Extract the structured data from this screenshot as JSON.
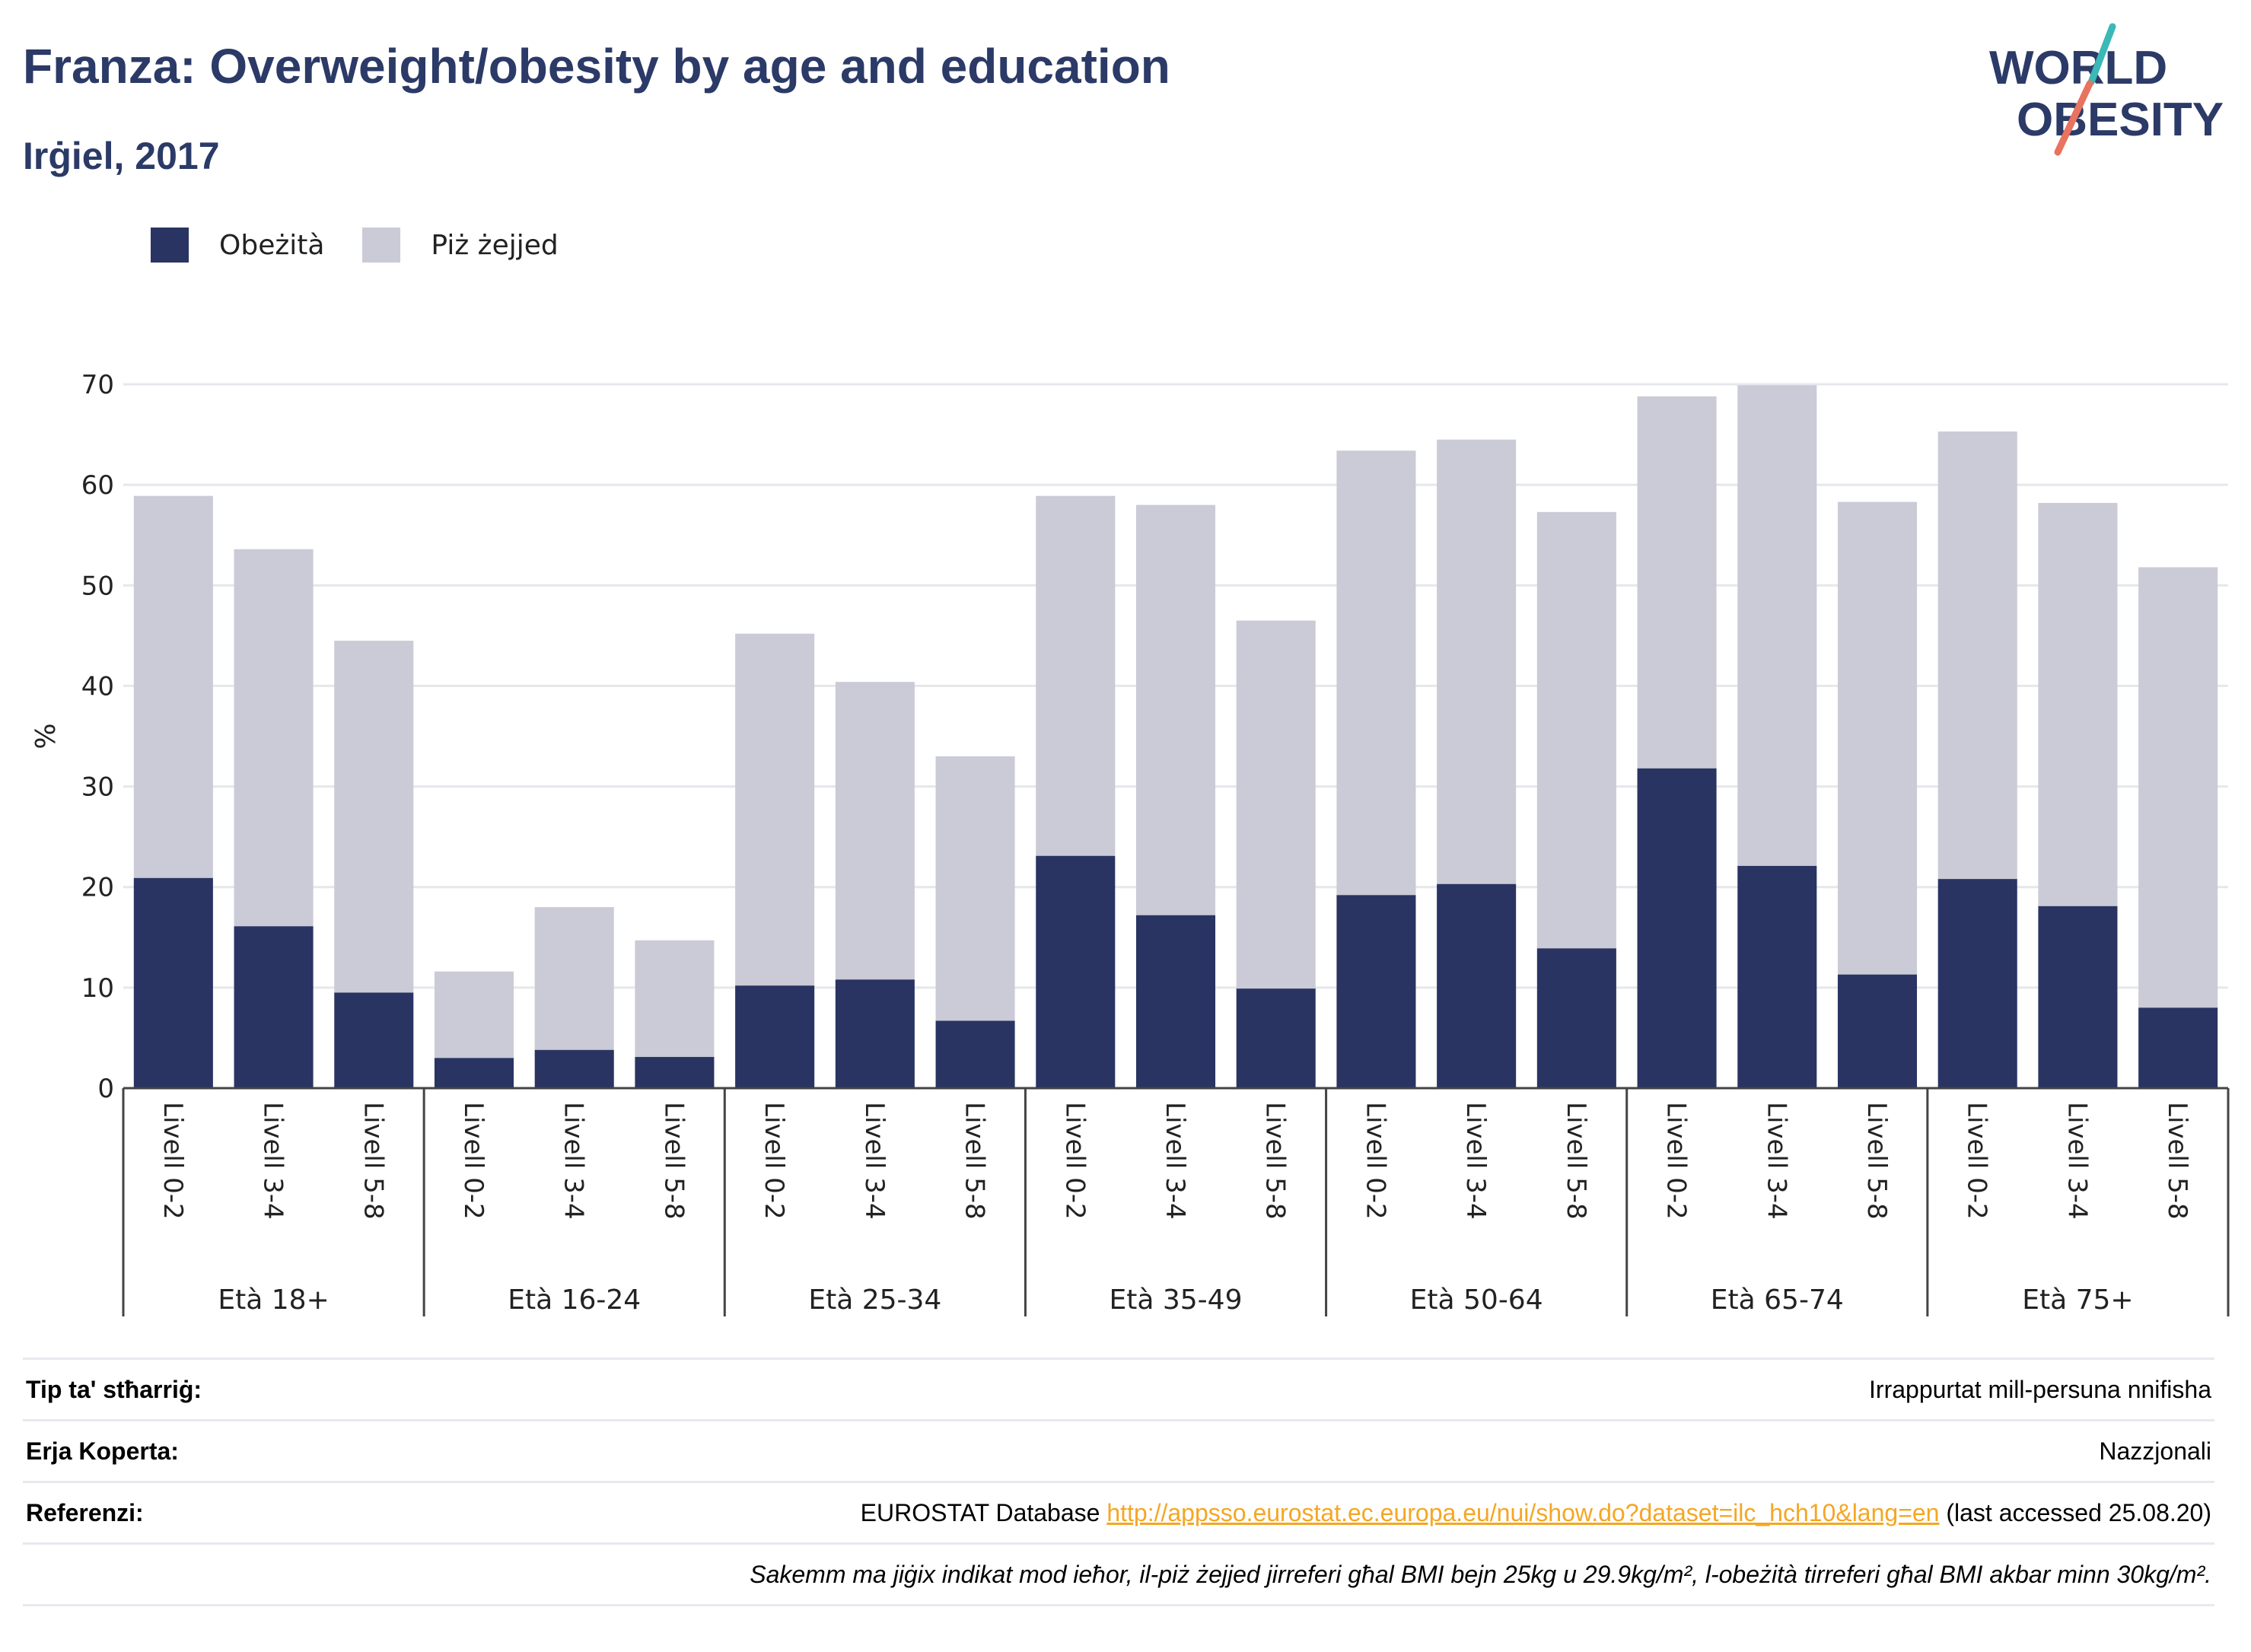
{
  "header": {
    "title": "Franza: Overweight/obesity by age and education",
    "subtitle": "Irġiel, 2017"
  },
  "logo": {
    "line1": "WORLD",
    "line2": "OBESITY"
  },
  "colors": {
    "obesity": "#293462",
    "overweight": "#cacbd6",
    "title": "#2b3a67",
    "link": "#f5a623"
  },
  "chart_data": {
    "type": "bar",
    "stacked": true,
    "ylabel": "%",
    "ylim": [
      0,
      70
    ],
    "yticks": [
      0,
      10,
      20,
      30,
      40,
      50,
      60,
      70
    ],
    "grid": true,
    "legend_position": "top-left",
    "groups": [
      "Età 18+",
      "Età 16-24",
      "Età 25-34",
      "Età 35-49",
      "Età 50-64",
      "Età 65-74",
      "Età 75+"
    ],
    "subcategories": [
      "Livell 0-2",
      "Livell 3-4",
      "Livell 5-8"
    ],
    "series": [
      {
        "name": "Obeżità",
        "color": "#293462",
        "values": [
          20.9,
          16.1,
          9.5,
          3.0,
          3.8,
          3.1,
          10.2,
          10.8,
          6.7,
          23.1,
          17.2,
          9.9,
          19.2,
          20.3,
          13.9,
          31.8,
          22.1,
          11.3,
          20.8,
          18.1,
          8.0
        ]
      },
      {
        "name": "Piż żejjed",
        "color": "#cacbd6",
        "values": [
          38.0,
          37.5,
          35.0,
          8.6,
          14.2,
          11.6,
          35.0,
          29.6,
          26.3,
          35.8,
          40.8,
          36.6,
          44.2,
          44.2,
          43.4,
          37.0,
          47.8,
          47.0,
          44.5,
          40.1,
          43.8
        ]
      }
    ]
  },
  "info_table": {
    "rows": [
      {
        "key": "Tip ta' stħarriġ:",
        "value": "Irrappurtat mill-persuna nnifisha"
      },
      {
        "key": "Erja Koperta:",
        "value": "Nazzjonali"
      },
      {
        "key": "Referenzi:",
        "value_prefix": "EUROSTAT Database ",
        "link": "http://appsso.eurostat.ec.europa.eu/nui/show.do?dataset=ilc_hch10&lang=en",
        "value_suffix": " (last accessed 25.08.20)"
      }
    ],
    "note": "Sakemm ma jiġix indikat mod ieħor, il-piż żejjed jirreferi għal BMI bejn 25kg u 29.9kg/m², l-obeżità tirreferi għal BMI akbar minn 30kg/m²."
  }
}
